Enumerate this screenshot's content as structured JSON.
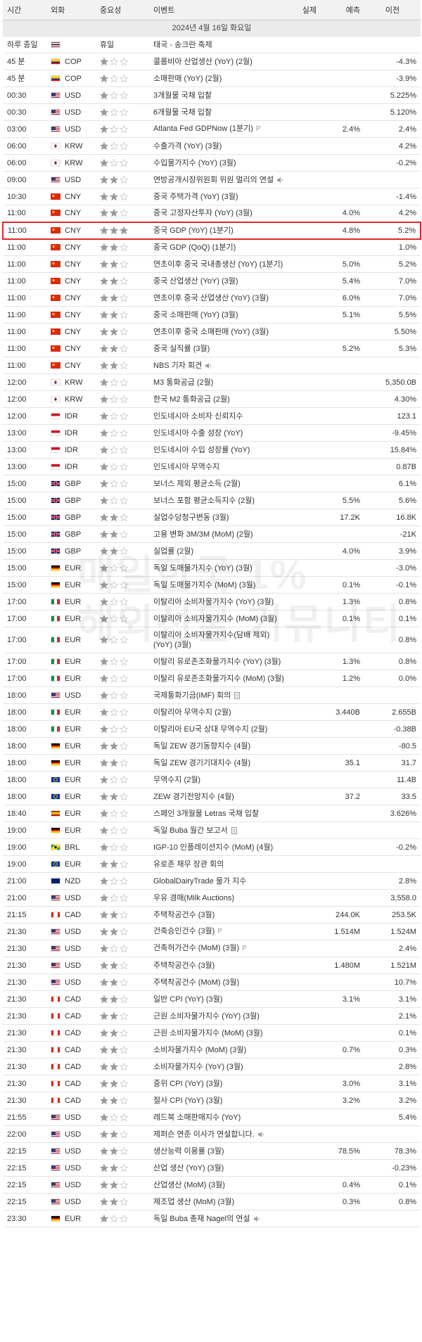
{
  "header": {
    "time": "시간",
    "currency": "외화",
    "importance": "중요성",
    "event": "이벤트",
    "actual": "실제",
    "forecast": "예측",
    "previous": "이전"
  },
  "date": "2024년 4월 16일 화요일",
  "watermark": [
    "매일한국 1%",
    "해외선물 커뮤니티"
  ],
  "rows": [
    {
      "time": "하루 종일",
      "flag": "th",
      "importance_label": "휴일",
      "event": "태국 - 송크란 축제"
    },
    {
      "time": "45 분",
      "flag": "co",
      "currency": "COP",
      "importance": 1,
      "event": "콜롬비아 산업생산 (YoY) (2월)",
      "previous": "-4.3%"
    },
    {
      "time": "45 분",
      "flag": "co",
      "currency": "COP",
      "importance": 1,
      "event": "소매판매 (YoY) (2월)",
      "previous": "-3.9%"
    },
    {
      "time": "00:30",
      "flag": "us",
      "currency": "USD",
      "importance": 1,
      "event": "3개월물 국채 입찰",
      "previous": "5.225%"
    },
    {
      "time": "00:30",
      "flag": "us",
      "currency": "USD",
      "importance": 1,
      "event": "6개월물 국채 입찰",
      "previous": "5.120%"
    },
    {
      "time": "03:00",
      "flag": "us",
      "currency": "USD",
      "importance": 1,
      "event": "Atlanta Fed GDPNow (1분기)",
      "badge": "P",
      "forecast": "2.4%",
      "previous": "2.4%"
    },
    {
      "time": "06:00",
      "flag": "kr",
      "currency": "KRW",
      "importance": 1,
      "event": "수출가격 (YoY) (3월)",
      "previous": "4.2%"
    },
    {
      "time": "06:00",
      "flag": "kr",
      "currency": "KRW",
      "importance": 1,
      "event": "수입물가지수 (YoY) (3월)",
      "previous": "-0.2%"
    },
    {
      "time": "09:00",
      "flag": "us",
      "currency": "USD",
      "importance": 2,
      "event": "연방공개시장위원회 위원 멀리의 연설",
      "icon": "speech"
    },
    {
      "time": "10:30",
      "flag": "cn",
      "currency": "CNY",
      "importance": 2,
      "event": "중국 주택가격 (YoY) (3월)",
      "previous": "-1.4%"
    },
    {
      "time": "11:00",
      "flag": "cn",
      "currency": "CNY",
      "importance": 2,
      "event": "중국 고정자산투자 (YoY) (3월)",
      "forecast": "4.0%",
      "previous": "4.2%"
    },
    {
      "time": "11:00",
      "flag": "cn",
      "currency": "CNY",
      "importance": 3,
      "event": "중국 GDP (YoY) (1분기)",
      "forecast": "4.8%",
      "previous": "5.2%"
    },
    {
      "time": "11:00",
      "flag": "cn",
      "currency": "CNY",
      "importance": 2,
      "event": "중국 GDP (QoQ) (1분기)",
      "previous": "1.0%"
    },
    {
      "time": "11:00",
      "flag": "cn",
      "currency": "CNY",
      "importance": 2,
      "event": "연초이후 중국 국내총생산 (YoY) (1분기)",
      "forecast": "5.0%",
      "previous": "5.2%"
    },
    {
      "time": "11:00",
      "flag": "cn",
      "currency": "CNY",
      "importance": 2,
      "event": "중국 산업생산 (YoY) (3월)",
      "forecast": "5.4%",
      "previous": "7.0%"
    },
    {
      "time": "11:00",
      "flag": "cn",
      "currency": "CNY",
      "importance": 2,
      "event": "연초이후 중국 산업생산 (YoY) (3월)",
      "forecast": "6.0%",
      "previous": "7.0%"
    },
    {
      "time": "11:00",
      "flag": "cn",
      "currency": "CNY",
      "importance": 2,
      "event": "중국 소매판매 (YoY) (3월)",
      "forecast": "5.1%",
      "previous": "5.5%"
    },
    {
      "time": "11:00",
      "flag": "cn",
      "currency": "CNY",
      "importance": 2,
      "event": "연초이후 중국 소매판매 (YoY) (3월)",
      "previous": "5.50%"
    },
    {
      "time": "11:00",
      "flag": "cn",
      "currency": "CNY",
      "importance": 2,
      "event": "중국 실직률 (3월)",
      "forecast": "5.2%",
      "previous": "5.3%"
    },
    {
      "time": "11:00",
      "flag": "cn",
      "currency": "CNY",
      "importance": 2,
      "event": "NBS 기자 회견",
      "icon": "speech"
    },
    {
      "time": "12:00",
      "flag": "kr",
      "currency": "KRW",
      "importance": 1,
      "event": "M3 통화공급 (2월)",
      "previous": "5,350.0B"
    },
    {
      "time": "12:00",
      "flag": "kr",
      "currency": "KRW",
      "importance": 1,
      "event": "한국 M2 통화공급 (2월)",
      "previous": "4.30%"
    },
    {
      "time": "12:00",
      "flag": "id",
      "currency": "IDR",
      "importance": 1,
      "event": "인도네시아 소비자 신뢰지수",
      "previous": "123.1"
    },
    {
      "time": "13:00",
      "flag": "id",
      "currency": "IDR",
      "importance": 1,
      "event": "인도네시아 수출 성장 (YoY)",
      "previous": "-9.45%"
    },
    {
      "time": "13:00",
      "flag": "id",
      "currency": "IDR",
      "importance": 1,
      "event": "인도네시아 수입 성장률 (YoY)",
      "previous": "15.84%"
    },
    {
      "time": "13:00",
      "flag": "id",
      "currency": "IDR",
      "importance": 1,
      "event": "인도네시아 무역수지",
      "previous": "0.87B"
    },
    {
      "time": "15:00",
      "flag": "gb",
      "currency": "GBP",
      "importance": 1,
      "event": "보너스 제외 평균소득 (2월)",
      "previous": "6.1%"
    },
    {
      "time": "15:00",
      "flag": "gb",
      "currency": "GBP",
      "importance": 1,
      "event": "보너스 포함 평균소득지수 (2월)",
      "forecast": "5.5%",
      "previous": "5.6%"
    },
    {
      "time": "15:00",
      "flag": "gb",
      "currency": "GBP",
      "importance": 2,
      "event": "실업수당청구변동 (3월)",
      "forecast": "17.2K",
      "previous": "16.8K"
    },
    {
      "time": "15:00",
      "flag": "gb",
      "currency": "GBP",
      "importance": 2,
      "event": "고용 변화 3M/3M (MoM) (2월)",
      "previous": "-21K"
    },
    {
      "time": "15:00",
      "flag": "gb",
      "currency": "GBP",
      "importance": 2,
      "event": "실업률 (2월)",
      "forecast": "4.0%",
      "previous": "3.9%"
    },
    {
      "time": "15:00",
      "flag": "de",
      "currency": "EUR",
      "importance": 1,
      "event": "독일 도매물가지수 (YoY) (3월)",
      "previous": "-3.0%"
    },
    {
      "time": "15:00",
      "flag": "de",
      "currency": "EUR",
      "importance": 1,
      "event": "독일 도매물가지수 (MoM) (3월)",
      "forecast": "0.1%",
      "previous": "-0.1%"
    },
    {
      "time": "17:00",
      "flag": "it",
      "currency": "EUR",
      "importance": 1,
      "event": "이탈리아 소비자물가지수 (YoY) (3월)",
      "forecast": "1.3%",
      "previous": "0.8%"
    },
    {
      "time": "17:00",
      "flag": "it",
      "currency": "EUR",
      "importance": 1,
      "event": "이탈리아 소비자물가지수 (MoM) (3월)",
      "forecast": "0.1%",
      "previous": "0.1%"
    },
    {
      "time": "17:00",
      "flag": "it",
      "currency": "EUR",
      "importance": 1,
      "event": "이탈리아 소비자물가지수(담배 제외) (YoY) (3월)",
      "previous": "0.8%"
    },
    {
      "time": "17:00",
      "flag": "it",
      "currency": "EUR",
      "importance": 1,
      "event": "이탈리 유로존조화물가지수 (YoY) (3월)",
      "forecast": "1.3%",
      "previous": "0.8%"
    },
    {
      "time": "17:00",
      "flag": "it",
      "currency": "EUR",
      "importance": 1,
      "event": "이탈리 유로존조화물가지수 (MoM) (3월)",
      "forecast": "1.2%",
      "previous": "0.0%"
    },
    {
      "time": "18:00",
      "flag": "us",
      "currency": "USD",
      "importance": 1,
      "event": "국제통화기금(IMF) 회의",
      "icon": "report"
    },
    {
      "time": "18:00",
      "flag": "it",
      "currency": "EUR",
      "importance": 1,
      "event": "이탈리아 무역수지 (2월)",
      "forecast": "3.440B",
      "previous": "2.655B"
    },
    {
      "time": "18:00",
      "flag": "it",
      "currency": "EUR",
      "importance": 1,
      "event": "이탈리아 EU국 상대 무역수지 (2월)",
      "previous": "-0.38B"
    },
    {
      "time": "18:00",
      "flag": "de",
      "currency": "EUR",
      "importance": 2,
      "event": "독일 ZEW 경기동향지수 (4월)",
      "previous": "-80.5"
    },
    {
      "time": "18:00",
      "flag": "de",
      "currency": "EUR",
      "importance": 2,
      "event": "독일 ZEW 경기기대지수 (4월)",
      "forecast": "35.1",
      "previous": "31.7"
    },
    {
      "time": "18:00",
      "flag": "eu",
      "currency": "EUR",
      "importance": 1,
      "event": "무역수지 (2월)",
      "previous": "11.4B"
    },
    {
      "time": "18:00",
      "flag": "eu",
      "currency": "EUR",
      "importance": 2,
      "event": "ZEW 경기전망지수 (4월)",
      "forecast": "37.2",
      "previous": "33.5"
    },
    {
      "time": "18:40",
      "flag": "es",
      "currency": "EUR",
      "importance": 1,
      "event": "스페인 3개월물 Letras 국채 입찰",
      "previous": "3.626%"
    },
    {
      "time": "19:00",
      "flag": "de",
      "currency": "EUR",
      "importance": 1,
      "event": "독일 Buba 월간 보고서",
      "icon": "report"
    },
    {
      "time": "19:00",
      "flag": "br",
      "currency": "BRL",
      "importance": 1,
      "event": "IGP-10 인플레이션지수 (MoM) (4월)",
      "previous": "-0.2%"
    },
    {
      "time": "19:00",
      "flag": "eu",
      "currency": "EUR",
      "importance": 2,
      "event": "유로존 재무 장관 회의"
    },
    {
      "time": "21:00",
      "flag": "nz",
      "currency": "NZD",
      "importance": 1,
      "event": "GlobalDairyTrade 물가 지수",
      "previous": "2.8%"
    },
    {
      "time": "21:00",
      "flag": "us",
      "currency": "USD",
      "importance": 1,
      "event": "우유 경매(Milk Auctions)",
      "previous": "3,558.0"
    },
    {
      "time": "21:15",
      "flag": "ca",
      "currency": "CAD",
      "importance": 2,
      "event": "주택착공건수 (3월)",
      "forecast": "244.0K",
      "previous": "253.5K"
    },
    {
      "time": "21:30",
      "flag": "us",
      "currency": "USD",
      "importance": 2,
      "event": "건축승인건수 (3월)",
      "badge": "P",
      "forecast": "1.514M",
      "previous": "1.524M"
    },
    {
      "time": "21:30",
      "flag": "us",
      "currency": "USD",
      "importance": 1,
      "event": "건축허가건수 (MoM) (3월)",
      "badge": "P",
      "previous": "2.4%"
    },
    {
      "time": "21:30",
      "flag": "us",
      "currency": "USD",
      "importance": 2,
      "event": "주택착공건수 (3월)",
      "forecast": "1.480M",
      "previous": "1.521M"
    },
    {
      "time": "21:30",
      "flag": "us",
      "currency": "USD",
      "importance": 2,
      "event": "주택착공건수 (MoM) (3월)",
      "previous": "10.7%"
    },
    {
      "time": "21:30",
      "flag": "ca",
      "currency": "CAD",
      "importance": 2,
      "event": "일반 CPI (YoY) (3월)",
      "forecast": "3.1%",
      "previous": "3.1%"
    },
    {
      "time": "21:30",
      "flag": "ca",
      "currency": "CAD",
      "importance": 2,
      "event": "근원 소비자물가지수 (YoY) (3월)",
      "previous": "2.1%"
    },
    {
      "time": "21:30",
      "flag": "ca",
      "currency": "CAD",
      "importance": 2,
      "event": "근원 소비자물가지수 (MoM) (3월)",
      "previous": "0.1%"
    },
    {
      "time": "21:30",
      "flag": "ca",
      "currency": "CAD",
      "importance": 2,
      "event": "소비자물가지수 (MoM) (3월)",
      "forecast": "0.7%",
      "previous": "0.3%"
    },
    {
      "time": "21:30",
      "flag": "ca",
      "currency": "CAD",
      "importance": 2,
      "event": "소비자물가지수 (YoY) (3월)",
      "previous": "2.8%"
    },
    {
      "time": "21:30",
      "flag": "ca",
      "currency": "CAD",
      "importance": 2,
      "event": "중위 CPI (YoY) (3월)",
      "forecast": "3.0%",
      "previous": "3.1%"
    },
    {
      "time": "21:30",
      "flag": "ca",
      "currency": "CAD",
      "importance": 2,
      "event": "절사 CPI (YoY) (3월)",
      "forecast": "3.2%",
      "previous": "3.2%"
    },
    {
      "time": "21:55",
      "flag": "us",
      "currency": "USD",
      "importance": 1,
      "event": "레드북 소매판매지수 (YoY)",
      "previous": "5.4%"
    },
    {
      "time": "22:00",
      "flag": "us",
      "currency": "USD",
      "importance": 2,
      "event": "제퍼슨 연준 이사가 연설합니다.",
      "icon": "speech"
    },
    {
      "time": "22:15",
      "flag": "us",
      "currency": "USD",
      "importance": 2,
      "event": "생산능력 이용률 (3월)",
      "forecast": "78.5%",
      "previous": "78.3%"
    },
    {
      "time": "22:15",
      "flag": "us",
      "currency": "USD",
      "importance": 2,
      "event": "산업 생산 (YoY) (3월)",
      "previous": "-0.23%"
    },
    {
      "time": "22:15",
      "flag": "us",
      "currency": "USD",
      "importance": 2,
      "event": "산업생산 (MoM) (3월)",
      "forecast": "0.4%",
      "previous": "0.1%"
    },
    {
      "time": "22:15",
      "flag": "us",
      "currency": "USD",
      "importance": 2,
      "event": "제조업 생산 (MoM) (3월)",
      "forecast": "0.3%",
      "previous": "0.8%"
    },
    {
      "time": "23:30",
      "flag": "de",
      "currency": "EUR",
      "importance": 1,
      "event": "독일 Buba 총재 Nagel의 연설",
      "icon": "speech"
    }
  ]
}
